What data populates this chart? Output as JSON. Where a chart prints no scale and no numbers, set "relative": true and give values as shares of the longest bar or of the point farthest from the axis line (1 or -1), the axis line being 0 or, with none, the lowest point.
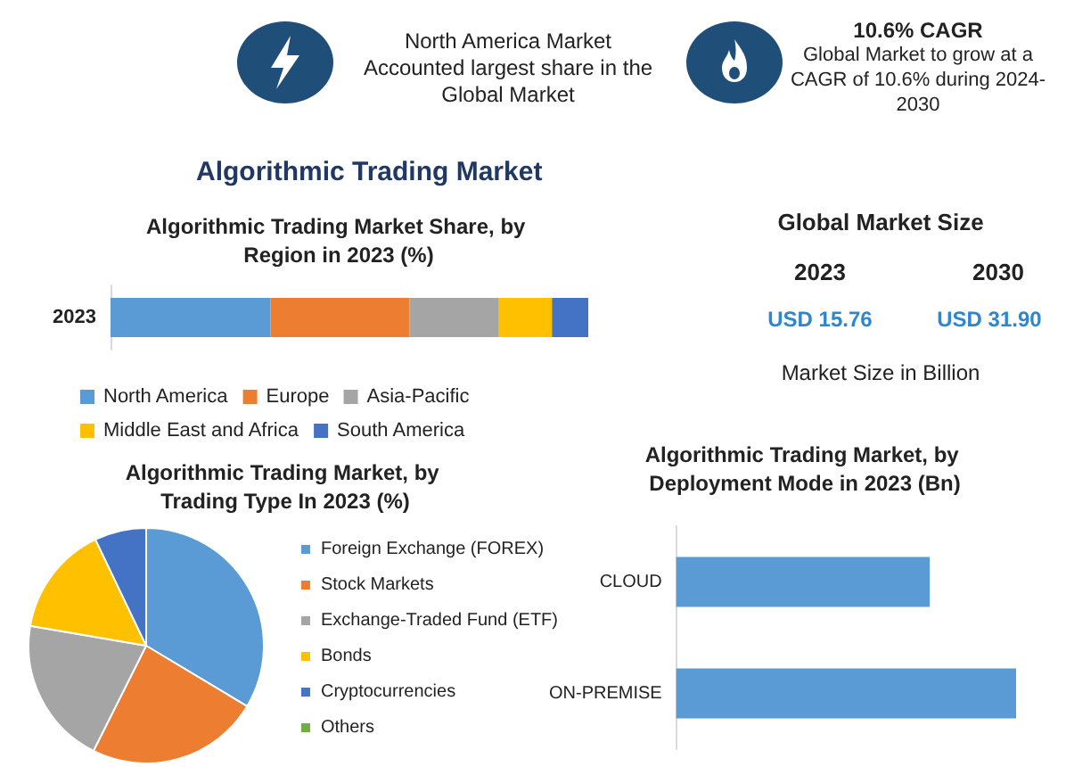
{
  "chart_data": [
    {
      "type": "other",
      "title": "Algorithmic Trading Market",
      "annotations": [
        "North America Market Accounted largest share in the Global Market",
        "10.6% CAGR",
        "Global Market to grow at a CAGR of 10.6% during 2024-2030"
      ]
    },
    {
      "type": "bar",
      "title": "Algorithmic Trading Market Share, by Region in 2023 (%)",
      "orientation": "horizontal",
      "stacked": true,
      "relative": true,
      "categories": [
        "2023"
      ],
      "legend": "bottom",
      "series": [
        {
          "name": "North America",
          "color": "#5b9bd5",
          "values": [
            0.335
          ]
        },
        {
          "name": "Europe",
          "color": "#ed7d31",
          "values": [
            0.291
          ]
        },
        {
          "name": "Asia-Pacific",
          "color": "#a5a5a5",
          "values": [
            0.187
          ]
        },
        {
          "name": "Middle East and Africa",
          "color": "#ffc000",
          "values": [
            0.111
          ]
        },
        {
          "name": "South America",
          "color": "#4472c4",
          "values": [
            0.076
          ]
        }
      ]
    },
    {
      "type": "other",
      "title": "Global Market Size",
      "annotations": [
        "2023",
        "2030",
        "USD 15.76",
        "USD 31.90",
        "Market Size in Billion"
      ]
    },
    {
      "type": "pie",
      "title": "Algorithmic Trading Market, by Trading Type In 2023 (%)",
      "legend": "right",
      "categories": [
        "Foreign Exchange (FOREX)",
        "Stock Markets",
        "Exchange-Traded Fund (ETF)",
        "Bonds",
        "Cryptocurrencies",
        "Others"
      ],
      "values": [
        33.6,
        23.8,
        20.3,
        15.2,
        7.1,
        0
      ],
      "colors": [
        "#5b9bd5",
        "#ed7d31",
        "#a5a5a5",
        "#ffc000",
        "#4472c4",
        "#70ad47"
      ]
    },
    {
      "type": "bar",
      "title": "Algorithmic Trading Market, by Deployment Mode in 2023 (Bn)",
      "orientation": "horizontal",
      "relative": true,
      "categories": [
        "CLOUD",
        "ON-PREMISE"
      ],
      "values": [
        0.746,
        1
      ],
      "color": "#5b9bd5"
    }
  ]
}
